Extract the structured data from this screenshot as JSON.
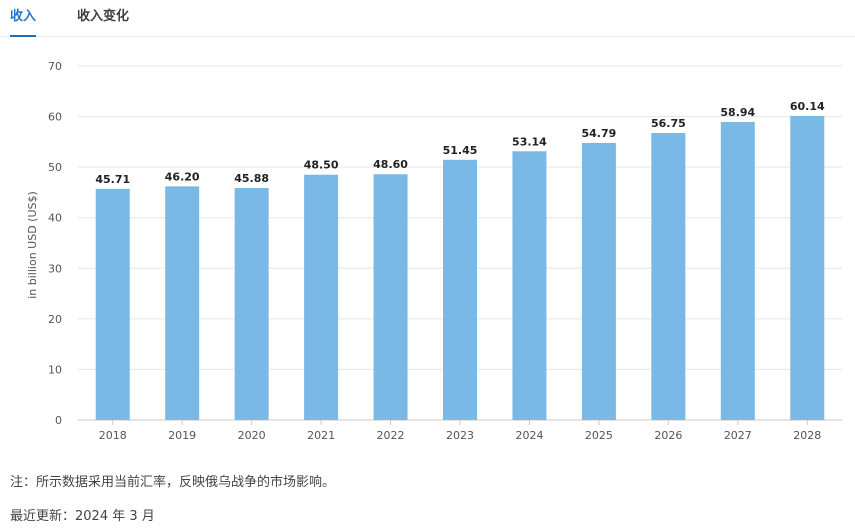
{
  "tabs": [
    {
      "label": "收入",
      "active": true
    },
    {
      "label": "收入变化",
      "active": false
    }
  ],
  "note": "注：所示数据采用当前汇率，反映俄乌战争的市场影响。",
  "updated": "最近更新：2024 年 3 月",
  "colors": {
    "bar": "#7ab9e6",
    "active_tab": "#1f77c9",
    "grid": "#e6e6e6"
  },
  "chart_data": {
    "type": "bar",
    "categories": [
      "2018",
      "2019",
      "2020",
      "2021",
      "2022",
      "2023",
      "2024",
      "2025",
      "2026",
      "2027",
      "2028"
    ],
    "values": [
      45.71,
      46.2,
      45.88,
      48.5,
      48.6,
      51.45,
      53.14,
      54.79,
      56.75,
      58.94,
      60.14
    ],
    "value_labels": [
      "45.71",
      "46.20",
      "45.88",
      "48.50",
      "48.60",
      "51.45",
      "53.14",
      "54.79",
      "56.75",
      "58.94",
      "60.14"
    ],
    "ylabel": "in billion USD (US$)",
    "xlabel": "",
    "ylim": [
      0,
      70
    ],
    "yticks": [
      0,
      10,
      20,
      30,
      40,
      50,
      60,
      70
    ],
    "grid": true
  }
}
